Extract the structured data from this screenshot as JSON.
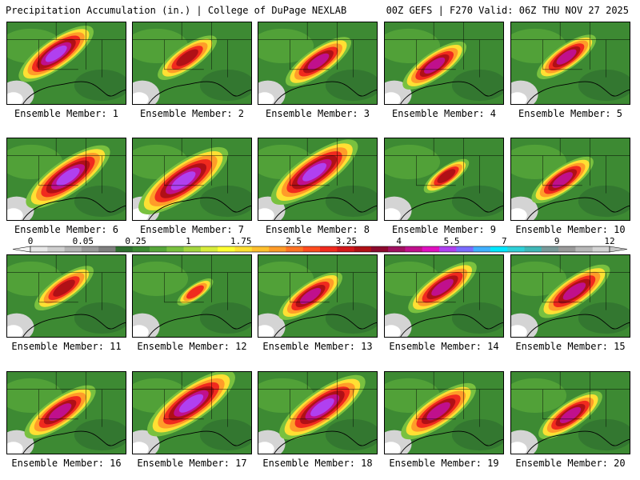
{
  "header": {
    "left": "Precipitation Accumulation (in.) | College of DuPage NEXLAB",
    "right": "00Z GEFS | F270 Valid: 06Z THU NOV 27 2025"
  },
  "member_prefix": "Ensemble Member: ",
  "members": [
    {
      "n": "1",
      "level": 0.72,
      "peak": 0.82
    },
    {
      "n": "2",
      "level": 0.55,
      "peak": 0.62
    },
    {
      "n": "3",
      "level": 0.62,
      "peak": 0.7
    },
    {
      "n": "4",
      "level": 0.6,
      "peak": 0.76
    },
    {
      "n": "5",
      "level": 0.55,
      "peak": 0.72
    },
    {
      "n": "6",
      "level": 0.82,
      "peak": 0.86
    },
    {
      "n": "7",
      "level": 0.88,
      "peak": 0.88
    },
    {
      "n": "8",
      "level": 0.85,
      "peak": 0.86
    },
    {
      "n": "9",
      "level": 0.4,
      "peak": 0.6
    },
    {
      "n": "10",
      "level": 0.58,
      "peak": 0.7
    },
    {
      "n": "11",
      "level": 0.55,
      "peak": 0.62
    },
    {
      "n": "12",
      "level": 0.3,
      "peak": 0.45
    },
    {
      "n": "13",
      "level": 0.6,
      "peak": 0.72
    },
    {
      "n": "14",
      "level": 0.65,
      "peak": 0.74
    },
    {
      "n": "15",
      "level": 0.68,
      "peak": 0.76
    },
    {
      "n": "16",
      "level": 0.68,
      "peak": 0.76
    },
    {
      "n": "17",
      "level": 0.86,
      "peak": 0.86
    },
    {
      "n": "18",
      "level": 0.84,
      "peak": 0.86
    },
    {
      "n": "19",
      "level": 0.72,
      "peak": 0.78
    },
    {
      "n": "20",
      "level": 0.6,
      "peak": 0.7
    }
  ],
  "colorbar": {
    "labels": [
      "0",
      "0.05",
      "0.25",
      "1",
      "1.75",
      "2.5",
      "3.25",
      "4",
      "5.5",
      "7",
      "9",
      "12"
    ],
    "colors": [
      "#e8e8e8",
      "#cfcfcf",
      "#b4b4b4",
      "#9a9a9a",
      "#7f7f7f",
      "#2f6f2f",
      "#3d8a33",
      "#56a63a",
      "#79c13f",
      "#a4d63f",
      "#d7ec3c",
      "#ffff33",
      "#ffe033",
      "#ffc02e",
      "#ff9c29",
      "#ff7424",
      "#ff4c1f",
      "#f02a1e",
      "#d3181b",
      "#b01016",
      "#8c0a2e",
      "#a01060",
      "#c0108c",
      "#e010c0",
      "#b040f0",
      "#7a6cff",
      "#40b0ff",
      "#00e8ff",
      "#30d0d8",
      "#40b8b8",
      "#7a9a9a",
      "#9a9a9a",
      "#b8b8b8",
      "#d4d4d4"
    ]
  }
}
